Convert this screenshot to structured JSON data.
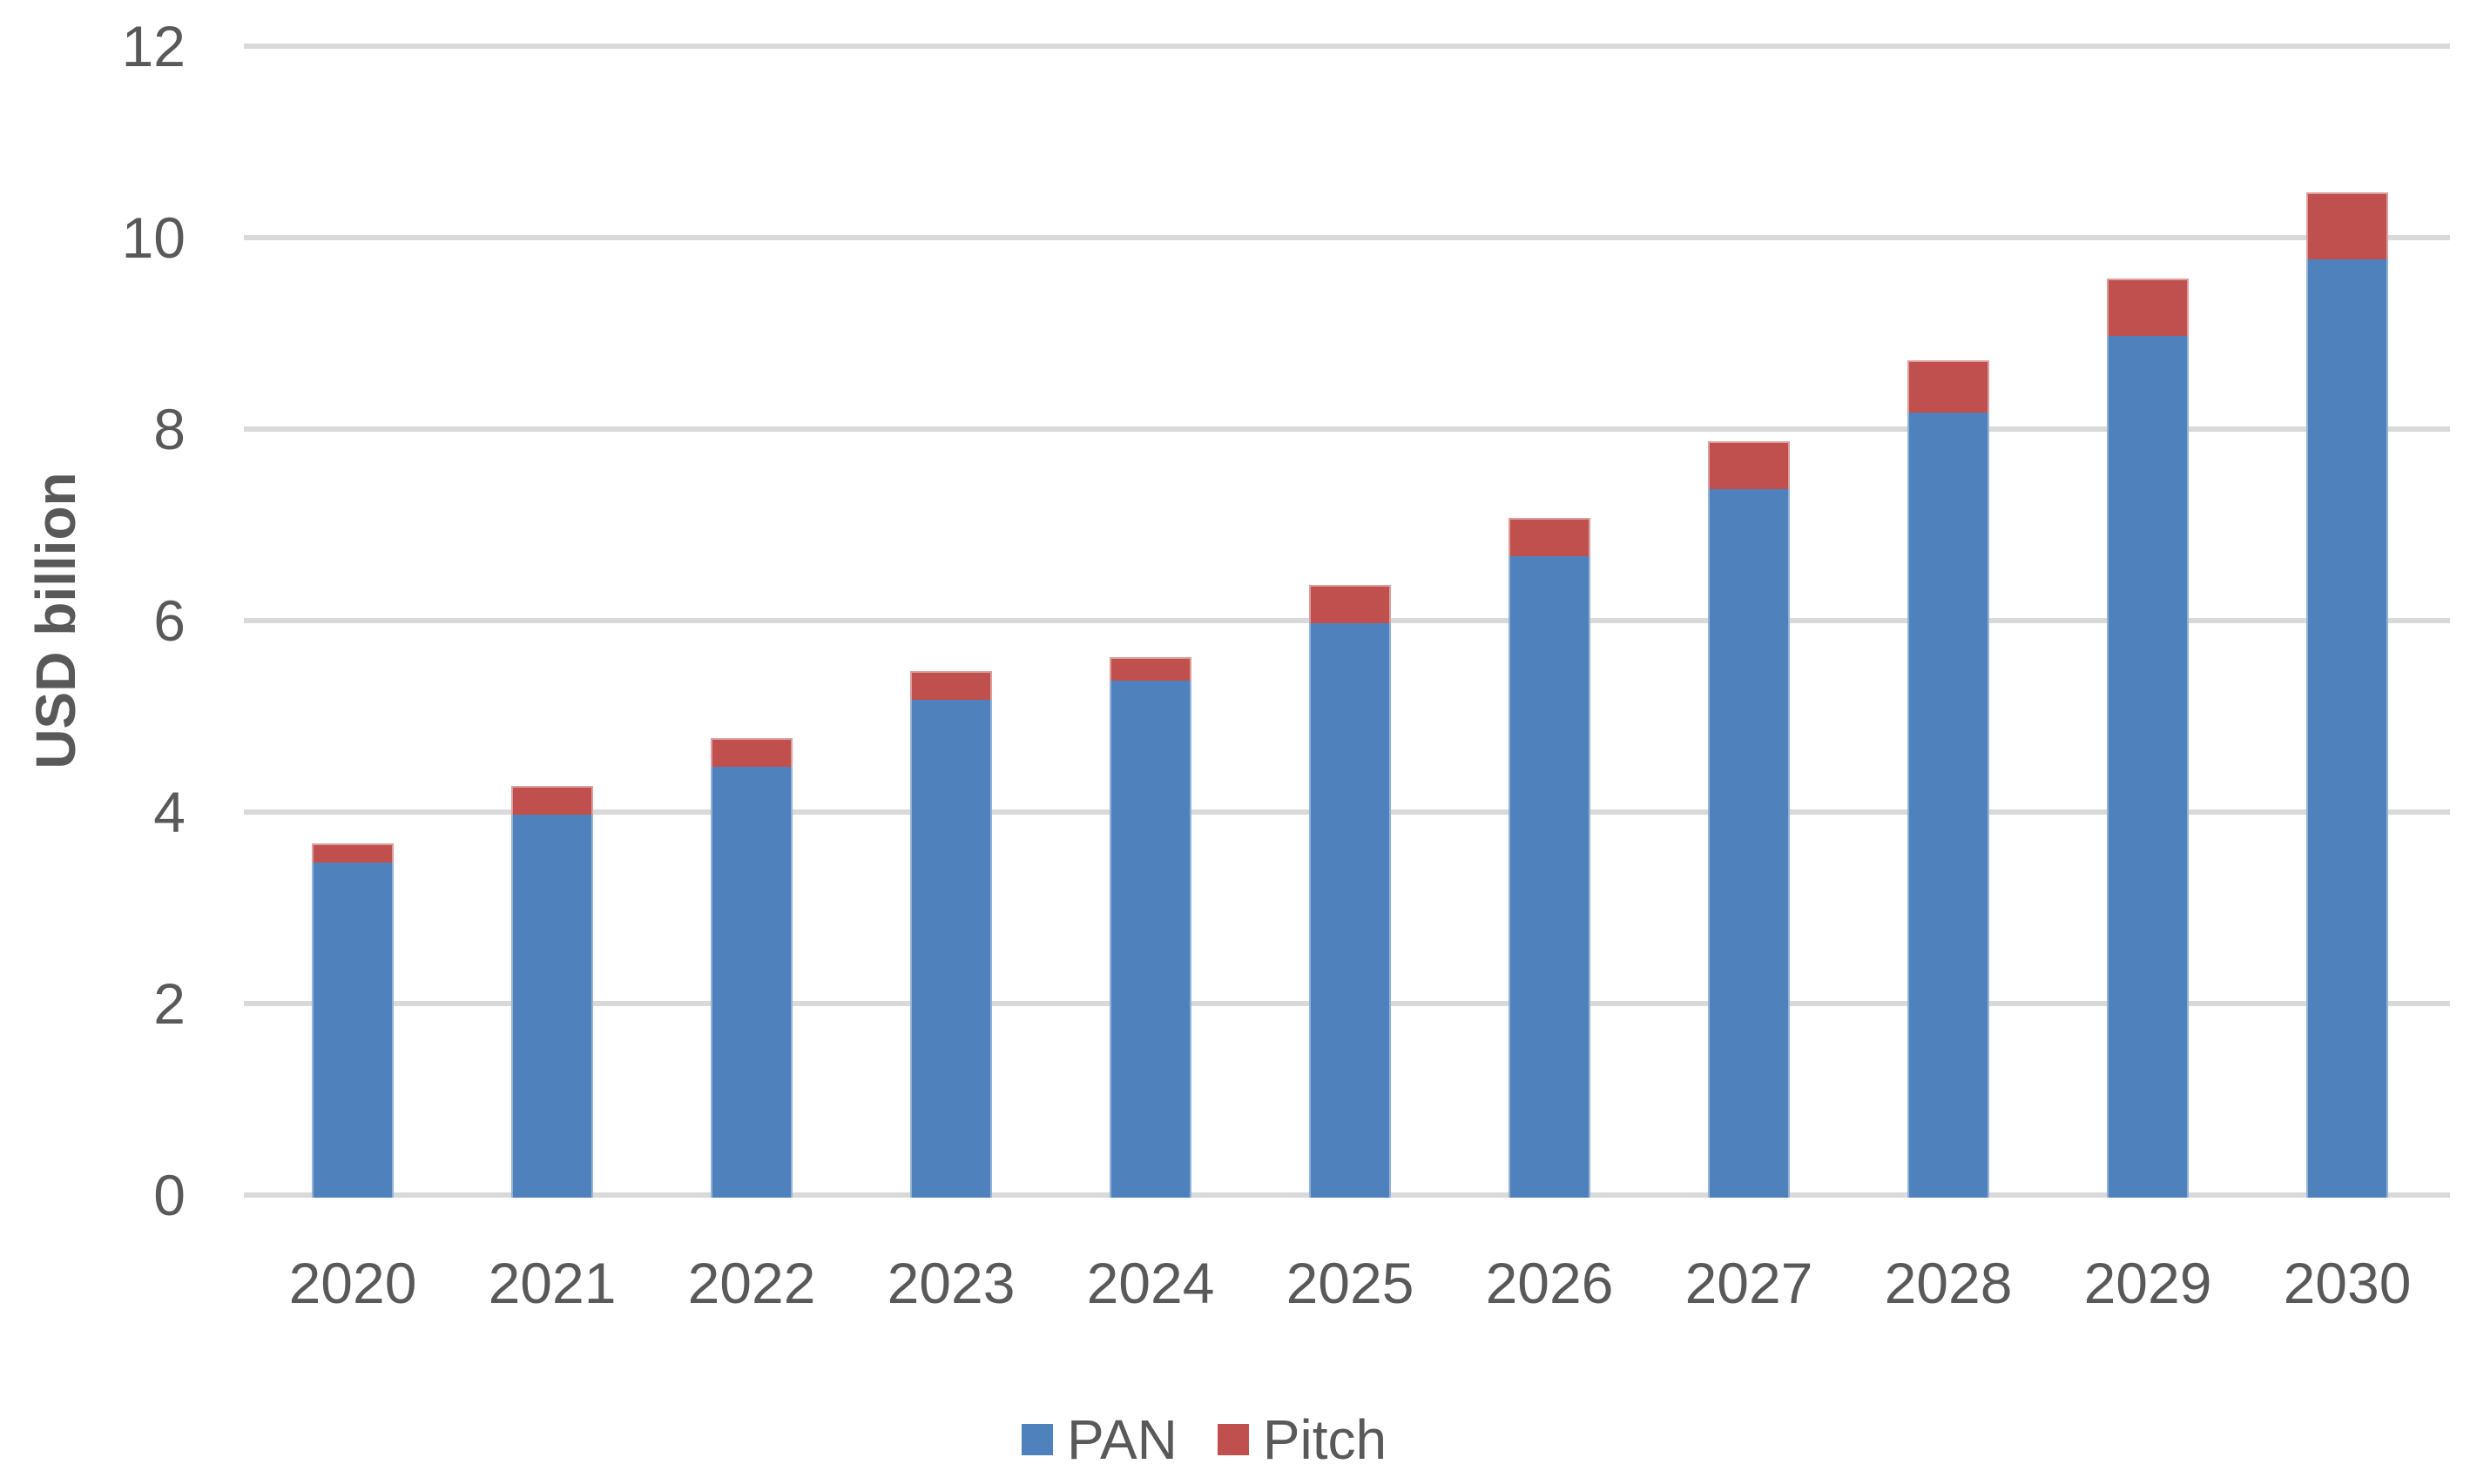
{
  "chart_data": {
    "type": "bar",
    "stacked": true,
    "title": "",
    "xlabel": "",
    "ylabel": "USD billion",
    "categories": [
      "2020",
      "2021",
      "2022",
      "2023",
      "2024",
      "2025",
      "2026",
      "2027",
      "2028",
      "2029",
      "2030"
    ],
    "series": [
      {
        "name": "PAN",
        "color": "#4F81BD",
        "values": [
          3.5,
          4.0,
          4.5,
          5.2,
          5.4,
          6.0,
          6.7,
          7.4,
          8.2,
          9.0,
          9.8
        ]
      },
      {
        "name": "Pitch",
        "color": "#C0504D",
        "values": [
          0.2,
          0.3,
          0.3,
          0.3,
          0.25,
          0.4,
          0.4,
          0.5,
          0.55,
          0.6,
          0.7
        ]
      }
    ],
    "totals": [
      3.7,
      4.3,
      4.8,
      5.5,
      5.65,
      6.4,
      7.1,
      7.9,
      8.75,
      9.6,
      10.5
    ],
    "ylim": [
      0,
      12
    ],
    "yticks": [
      0,
      2,
      4,
      6,
      8,
      10,
      12
    ],
    "grid": "horizontal",
    "gridline_color": "#d9d9d9",
    "text_color": "#595959",
    "background_color": "#ffffff",
    "legend_position": "bottom",
    "legend": [
      {
        "label": "PAN",
        "color": "#4F81BD"
      },
      {
        "label": "Pitch",
        "color": "#C0504D"
      }
    ]
  }
}
